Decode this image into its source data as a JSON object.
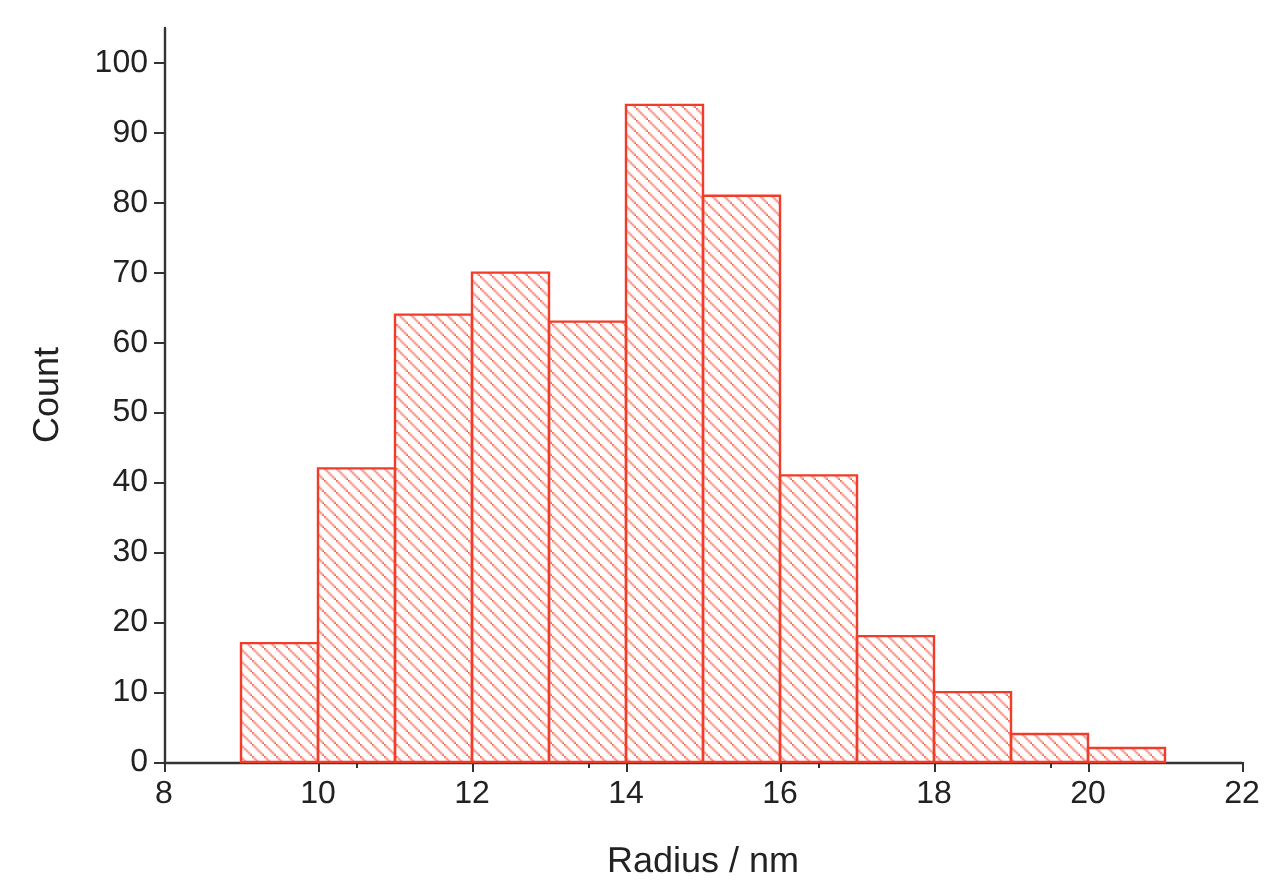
{
  "chart_data": {
    "type": "histogram",
    "xlabel": "Radius / nm",
    "ylabel": "Count",
    "bins": [
      9,
      10,
      11,
      12,
      13,
      14,
      15,
      16,
      17,
      18,
      19,
      20,
      21
    ],
    "values": [
      17,
      42,
      64,
      70,
      63,
      94,
      81,
      41,
      18,
      10,
      4,
      2
    ],
    "color": "#f03c28",
    "xlim": [
      8,
      22
    ],
    "xticks": [
      8,
      10,
      12,
      14,
      16,
      18,
      20,
      22
    ],
    "ylim": [
      0,
      105
    ],
    "yticks": [
      0,
      10,
      20,
      30,
      40,
      50,
      60,
      70,
      80,
      90,
      100
    ],
    "grid": false
  }
}
